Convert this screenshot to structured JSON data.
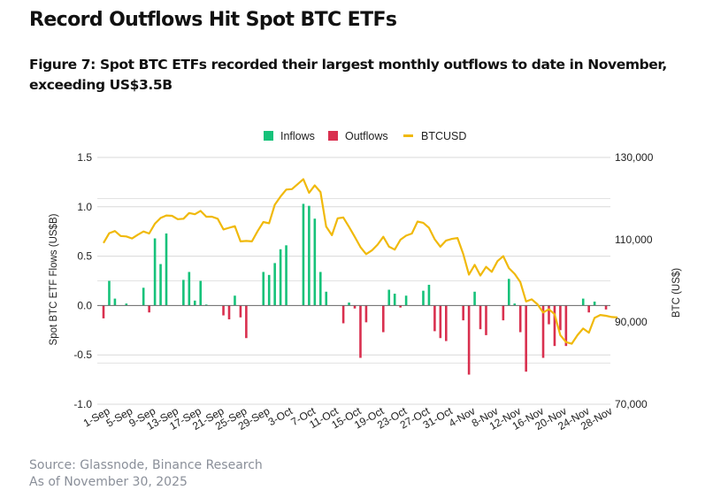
{
  "header": {
    "title": "Record Outflows Hit Spot BTC ETFs",
    "caption": "Figure 7: Spot BTC ETFs recorded their largest monthly outflows to date in November, exceeding US$3.5B"
  },
  "footer": {
    "source": "Source: Glassnode, Binance Research",
    "as_of": "As of November 30, 2025"
  },
  "chart_data": {
    "type": "bar+line",
    "title": "",
    "xlabel": "",
    "ylabel": "Spot BTC ETF Flows (US$B)",
    "y2label": "BTC (US$)",
    "ylim": [
      -1.0,
      1.5
    ],
    "y2lim": [
      70000,
      130000
    ],
    "yticks": [
      "1.5",
      "1.0",
      "0.5",
      "0.0",
      "-0.5",
      "-1.0"
    ],
    "yticks_values": [
      1.5,
      1.0,
      0.5,
      0.0,
      -0.5,
      -1.0
    ],
    "y2ticks": [
      "130,000",
      "110,000",
      "90,000",
      "70,000"
    ],
    "y2ticks_values": [
      130000,
      110000,
      90000,
      70000
    ],
    "grid": true,
    "legend_position": "top-center",
    "legend": [
      {
        "name": "Inflows",
        "color": "#16c27a",
        "kind": "bar"
      },
      {
        "name": "Outflows",
        "color": "#d9304f",
        "kind": "bar"
      },
      {
        "name": "BTCUSD",
        "color": "#f0b90b",
        "kind": "line"
      }
    ],
    "x_start": "1-Sep",
    "x_days": 91,
    "xtick_labels": [
      "1-Sep",
      "5-Sep",
      "9-Sep",
      "13-Sep",
      "17-Sep",
      "21-Sep",
      "25-Sep",
      "29-Sep",
      "3-Oct",
      "7-Oct",
      "11-Oct",
      "15-Oct",
      "19-Oct",
      "23-Oct",
      "27-Oct",
      "31-Oct",
      "4-Nov",
      "8-Nov",
      "12-Nov",
      "16-Nov",
      "20-Nov",
      "24-Nov",
      "28-Nov"
    ],
    "xtick_days": [
      0,
      4,
      8,
      12,
      16,
      20,
      24,
      28,
      32,
      36,
      40,
      44,
      48,
      52,
      56,
      60,
      64,
      68,
      72,
      76,
      80,
      84,
      88
    ],
    "flows": [
      {
        "date": "1-Sep",
        "day": 0,
        "value": -0.13
      },
      {
        "date": "2-Sep",
        "day": 1,
        "value": 0.25
      },
      {
        "date": "3-Sep",
        "day": 2,
        "value": 0.07
      },
      {
        "date": "5-Sep",
        "day": 4,
        "value": 0.02
      },
      {
        "date": "8-Sep",
        "day": 7,
        "value": 0.18
      },
      {
        "date": "9-Sep",
        "day": 8,
        "value": -0.07
      },
      {
        "date": "10-Sep",
        "day": 9,
        "value": 0.68
      },
      {
        "date": "11-Sep",
        "day": 10,
        "value": 0.42
      },
      {
        "date": "12-Sep",
        "day": 11,
        "value": 0.73
      },
      {
        "date": "15-Sep",
        "day": 14,
        "value": 0.26
      },
      {
        "date": "16-Sep",
        "day": 15,
        "value": 0.34
      },
      {
        "date": "17-Sep",
        "day": 16,
        "value": 0.05
      },
      {
        "date": "18-Sep",
        "day": 17,
        "value": 0.25
      },
      {
        "date": "19-Sep",
        "day": 18,
        "value": 0.01
      },
      {
        "date": "22-Sep",
        "day": 21,
        "value": -0.1
      },
      {
        "date": "23-Sep",
        "day": 22,
        "value": -0.14
      },
      {
        "date": "24-Sep",
        "day": 23,
        "value": 0.1
      },
      {
        "date": "25-Sep",
        "day": 24,
        "value": -0.12
      },
      {
        "date": "26-Sep",
        "day": 25,
        "value": -0.33
      },
      {
        "date": "29-Sep",
        "day": 28,
        "value": 0.34
      },
      {
        "date": "30-Sep",
        "day": 29,
        "value": 0.31
      },
      {
        "date": "1-Oct",
        "day": 30,
        "value": 0.43
      },
      {
        "date": "2-Oct",
        "day": 31,
        "value": 0.57
      },
      {
        "date": "3-Oct",
        "day": 32,
        "value": 0.61
      },
      {
        "date": "6-Oct",
        "day": 35,
        "value": 1.03
      },
      {
        "date": "7-Oct",
        "day": 36,
        "value": 1.01
      },
      {
        "date": "8-Oct",
        "day": 37,
        "value": 0.88
      },
      {
        "date": "9-Oct",
        "day": 38,
        "value": 0.34
      },
      {
        "date": "10-Oct",
        "day": 39,
        "value": 0.14
      },
      {
        "date": "13-Oct",
        "day": 42,
        "value": -0.18
      },
      {
        "date": "14-Oct",
        "day": 43,
        "value": 0.03
      },
      {
        "date": "15-Oct",
        "day": 44,
        "value": -0.03
      },
      {
        "date": "16-Oct",
        "day": 45,
        "value": -0.53
      },
      {
        "date": "17-Oct",
        "day": 46,
        "value": -0.17
      },
      {
        "date": "20-Oct",
        "day": 49,
        "value": -0.27
      },
      {
        "date": "21-Oct",
        "day": 50,
        "value": 0.16
      },
      {
        "date": "22-Oct",
        "day": 51,
        "value": 0.12
      },
      {
        "date": "23-Oct",
        "day": 52,
        "value": -0.02
      },
      {
        "date": "24-Oct",
        "day": 53,
        "value": 0.1
      },
      {
        "date": "27-Oct",
        "day": 56,
        "value": 0.15
      },
      {
        "date": "28-Oct",
        "day": 57,
        "value": 0.21
      },
      {
        "date": "29-Oct",
        "day": 58,
        "value": -0.26
      },
      {
        "date": "30-Oct",
        "day": 59,
        "value": -0.33
      },
      {
        "date": "31-Oct",
        "day": 60,
        "value": -0.36
      },
      {
        "date": "3-Nov",
        "day": 63,
        "value": -0.15
      },
      {
        "date": "4-Nov",
        "day": 64,
        "value": -0.7
      },
      {
        "date": "5-Nov",
        "day": 65,
        "value": 0.14
      },
      {
        "date": "6-Nov",
        "day": 66,
        "value": -0.24
      },
      {
        "date": "7-Nov",
        "day": 67,
        "value": -0.3
      },
      {
        "date": "10-Nov",
        "day": 70,
        "value": -0.15
      },
      {
        "date": "11-Nov",
        "day": 71,
        "value": 0.27
      },
      {
        "date": "12-Nov",
        "day": 72,
        "value": 0.02
      },
      {
        "date": "13-Nov",
        "day": 73,
        "value": -0.27
      },
      {
        "date": "14-Nov",
        "day": 74,
        "value": -0.67
      },
      {
        "date": "17-Nov",
        "day": 77,
        "value": -0.53
      },
      {
        "date": "18-Nov",
        "day": 78,
        "value": -0.19
      },
      {
        "date": "19-Nov",
        "day": 79,
        "value": -0.41
      },
      {
        "date": "20-Nov",
        "day": 80,
        "value": -0.25
      },
      {
        "date": "21-Nov",
        "day": 81,
        "value": -0.41
      },
      {
        "date": "24-Nov",
        "day": 84,
        "value": 0.07
      },
      {
        "date": "25-Nov",
        "day": 85,
        "value": -0.07
      },
      {
        "date": "26-Nov",
        "day": 86,
        "value": 0.04
      },
      {
        "date": "28-Nov",
        "day": 88,
        "value": -0.04
      }
    ],
    "btcusd": [
      109200,
      111600,
      112100,
      110900,
      110800,
      110300,
      111200,
      112000,
      111500,
      113900,
      115300,
      115900,
      115800,
      115000,
      115100,
      116500,
      116200,
      117000,
      115600,
      115600,
      115100,
      112500,
      112900,
      113300,
      109600,
      109700,
      109600,
      112100,
      114300,
      114000,
      118500,
      120500,
      122200,
      122300,
      123500,
      124700,
      121400,
      123200,
      121600,
      113200,
      111100,
      115200,
      115400,
      113100,
      110700,
      108200,
      106500,
      107400,
      108800,
      110700,
      108300,
      107600,
      110000,
      111000,
      111500,
      114400,
      114100,
      112900,
      110100,
      108300,
      109800,
      110200,
      110400,
      106500,
      101500,
      103900,
      101300,
      103400,
      102200,
      104800,
      106000,
      103100,
      101700,
      99700,
      95000,
      95500,
      94300,
      92300,
      93100,
      91900,
      86800,
      85100,
      84700,
      86800,
      88400,
      87400,
      91000,
      91700,
      91500,
      91200,
      91100
    ]
  }
}
